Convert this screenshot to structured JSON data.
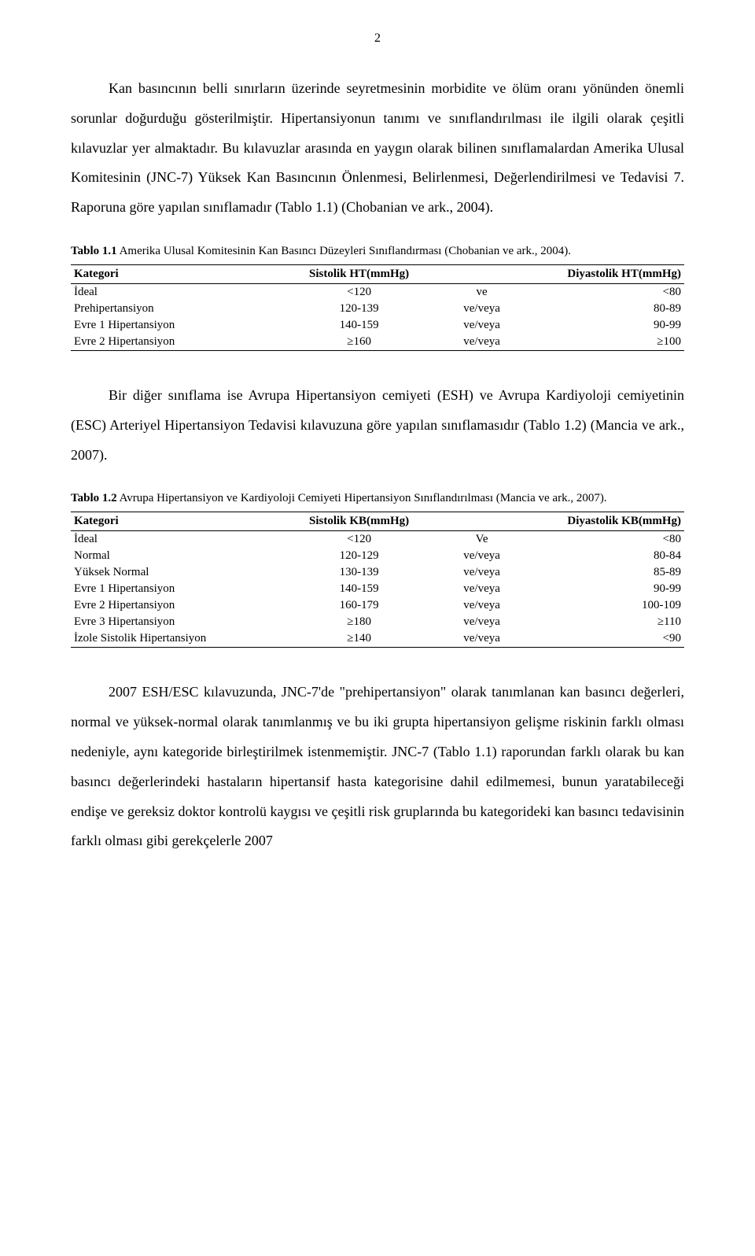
{
  "page_number": "2",
  "para1": "Kan basıncının belli sınırların üzerinde seyretmesinin morbidite ve ölüm oranı yönünden önemli sorunlar doğurduğu gösterilmiştir. Hipertansiyonun tanımı ve sınıflandırılması ile ilgili olarak çeşitli kılavuzlar yer almaktadır. Bu kılavuzlar arasında en yaygın olarak bilinen sınıflamalardan Amerika Ulusal Komitesinin (JNC-7) Yüksek Kan Basıncının Önlenmesi, Belirlenmesi, Değerlendirilmesi ve Tedavisi 7. Raporuna göre yapılan sınıflamadır (Tablo 1.1) (Chobanian ve ark., 2004).",
  "table1": {
    "caption_bold": "Tablo 1.1",
    "caption_rest": " Amerika Ulusal Komitesinin Kan Basıncı Düzeyleri Sınıflandırması (Chobanian ve ark., 2004).",
    "headers": {
      "c0": "Kategori",
      "c1": "Sistolik HT(mmHg)",
      "c2": "",
      "c3": "Diyastolik HT(mmHg)"
    },
    "rows": [
      {
        "c0": "İdeal",
        "c1": "<120",
        "c2": "ve",
        "c3": "<80"
      },
      {
        "c0": "Prehipertansiyon",
        "c1": "120-139",
        "c2": "ve/veya",
        "c3": "80-89"
      },
      {
        "c0": "Evre 1 Hipertansiyon",
        "c1": "140-159",
        "c2": "ve/veya",
        "c3": "90-99"
      },
      {
        "c0": "Evre 2 Hipertansiyon",
        "c1": "≥160",
        "c2": "ve/veya",
        "c3": "≥100"
      }
    ]
  },
  "para2": "Bir diğer sınıflama ise Avrupa Hipertansiyon cemiyeti (ESH) ve Avrupa Kardiyoloji cemiyetinin (ESC) Arteriyel Hipertansiyon Tedavisi kılavuzuna göre yapılan sınıflamasıdır (Tablo 1.2) (Mancia ve ark., 2007).",
  "table2": {
    "caption_bold": "Tablo 1.2",
    "caption_rest": " Avrupa Hipertansiyon ve Kardiyoloji Cemiyeti Hipertansiyon Sınıflandırılması (Mancia ve ark., 2007).",
    "headers": {
      "c0": "Kategori",
      "c1": "Sistolik KB(mmHg)",
      "c2": "",
      "c3": "Diyastolik KB(mmHg)"
    },
    "rows": [
      {
        "c0": "İdeal",
        "c1": "<120",
        "c2": "Ve",
        "c3": "<80"
      },
      {
        "c0": "Normal",
        "c1": "120-129",
        "c2": "ve/veya",
        "c3": "80-84"
      },
      {
        "c0": "Yüksek Normal",
        "c1": "130-139",
        "c2": "ve/veya",
        "c3": "85-89"
      },
      {
        "c0": "Evre 1 Hipertansiyon",
        "c1": "140-159",
        "c2": "ve/veya",
        "c3": "90-99"
      },
      {
        "c0": "Evre 2 Hipertansiyon",
        "c1": "160-179",
        "c2": "ve/veya",
        "c3": "100-109"
      },
      {
        "c0": "Evre 3 Hipertansiyon",
        "c1": "≥180",
        "c2": "ve/veya",
        "c3": "≥110"
      },
      {
        "c0": "İzole Sistolik  Hipertansiyon",
        "c1": "≥140",
        "c2": "ve/veya",
        "c3": "<90"
      }
    ]
  },
  "para3": "2007 ESH/ESC kılavuzunda, JNC-7'de \"prehipertansiyon\" olarak tanımlanan kan basıncı değerleri, normal ve yüksek-normal olarak tanımlanmış ve bu iki grupta hipertansiyon gelişme riskinin farklı olması nedeniyle, aynı kategoride birleştirilmek istenmemiştir. JNC-7 (Tablo 1.1) raporundan farklı olarak bu kan basıncı değerlerindeki hastaların hipertansif hasta kategorisine dahil edilmemesi, bunun yaratabileceği endişe ve gereksiz doktor kontrolü kaygısı ve çeşitli risk gruplarında bu kategorideki kan basıncı tedavisinin farklı olması gibi gerekçelerle 2007"
}
